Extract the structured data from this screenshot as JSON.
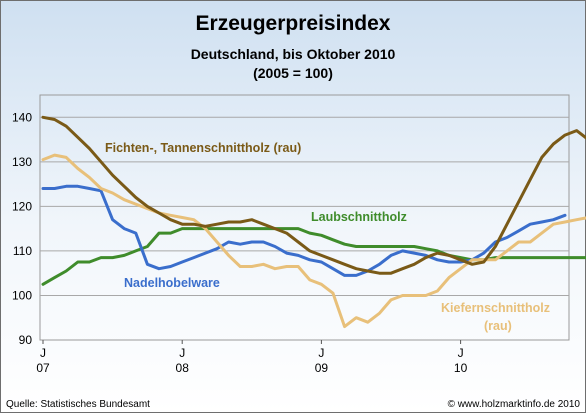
{
  "title": "Erzeugerpreisindex",
  "subtitle_line1": "Deutschland, bis Oktober 2010",
  "subtitle_line2": "(2005 = 100)",
  "footer_source": "Quelle: Statistisches Bundesamt",
  "footer_site": "© www.holzmarktinfo.de 2010",
  "chart_data": {
    "type": "line",
    "ylim": [
      90,
      145
    ],
    "yticks": [
      90,
      100,
      110,
      120,
      130,
      140
    ],
    "x_month_start": "2007-01",
    "x_tick_months": [
      0,
      12,
      24,
      36
    ],
    "x_tick_labels": [
      {
        "line1": "J",
        "line2": "07"
      },
      {
        "line1": "J",
        "line2": "08"
      },
      {
        "line1": "J",
        "line2": "09"
      },
      {
        "line1": "J",
        "line2": "10"
      }
    ],
    "grid": "horizontal",
    "series": [
      {
        "name": "Fichten-, Tannenschnittholz (rau)",
        "color": "#7a5a17",
        "values": [
          140,
          139.5,
          138,
          135.5,
          133,
          130,
          127,
          124.5,
          122,
          120,
          118.5,
          117,
          116,
          116,
          115.5,
          116,
          116.5,
          116.5,
          117,
          116,
          115,
          114,
          112,
          110,
          109,
          108,
          107,
          106,
          105.5,
          105,
          105,
          106,
          107,
          108.5,
          109.5,
          109,
          108,
          107,
          107.5,
          111,
          116,
          121,
          126,
          131,
          134,
          136,
          137,
          135
        ]
      },
      {
        "name": "Kiefernschnittholz (rau)",
        "color": "#e8c07a",
        "values": [
          130.5,
          131.5,
          131,
          128.5,
          126.5,
          124,
          123,
          121.5,
          120.5,
          119.5,
          118.5,
          118,
          117.5,
          117,
          115,
          112,
          109,
          106.5,
          106.5,
          107,
          106,
          106.5,
          106.5,
          103.5,
          102.5,
          100.5,
          93,
          95,
          94,
          96,
          99,
          100,
          100,
          100,
          101,
          104,
          106,
          108,
          108,
          108,
          110,
          112,
          112,
          114,
          116,
          116.5,
          117,
          117.5
        ]
      },
      {
        "name": "Nadelhobelware",
        "color": "#3a6ecc",
        "values": [
          124,
          124,
          124.5,
          124.5,
          124,
          123.5,
          117,
          115,
          114,
          107,
          106,
          106.5,
          107.5,
          108.5,
          109.5,
          110.5,
          112,
          111.5,
          112,
          112,
          111,
          109.5,
          109,
          108,
          107.5,
          106,
          104.5,
          104.5,
          105.5,
          107,
          109,
          110,
          109.5,
          109,
          108,
          107.5,
          107.5,
          108,
          109.5,
          112,
          113,
          114.5,
          116,
          116.5,
          117,
          118
        ]
      },
      {
        "name": "Laubschnittholz",
        "color": "#3f8c2b",
        "values": [
          102.5,
          104,
          105.5,
          107.5,
          107.5,
          108.5,
          108.5,
          109,
          110,
          111,
          114,
          114,
          115,
          115,
          115,
          115,
          115,
          115,
          115,
          115,
          115,
          115,
          115,
          114,
          113.5,
          112.5,
          111.5,
          111,
          111,
          111,
          111,
          111,
          111,
          110.5,
          110,
          109,
          108.5,
          108,
          108,
          108.5,
          108.5,
          108.5,
          108.5,
          108.5,
          108.5,
          108.5,
          108.5,
          108.5
        ]
      }
    ]
  },
  "labels": {
    "fichten": "Fichten-, Tannenschnittholz (rau)",
    "laub": "Laubschnittholz",
    "nadel": "Nadelhobelware",
    "kiefer_line1": "Kiefernschnittholz",
    "kiefer_line2": "(rau)"
  }
}
